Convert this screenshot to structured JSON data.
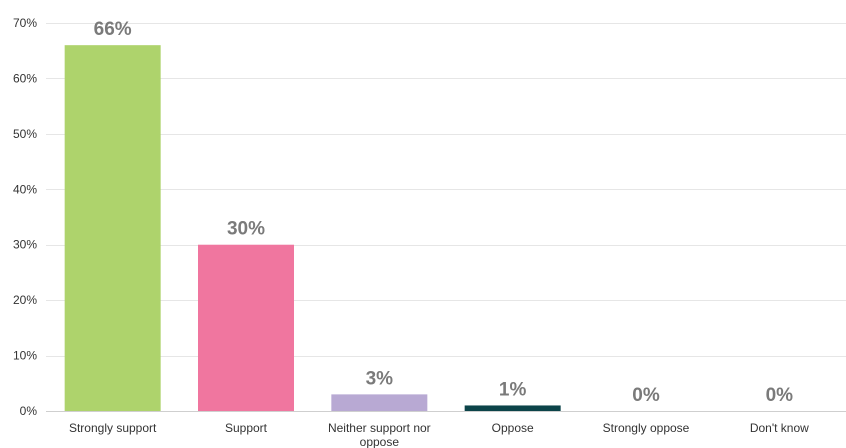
{
  "chart_data": {
    "type": "bar",
    "title": "",
    "xlabel": "",
    "ylabel": "",
    "ylim": [
      0,
      70
    ],
    "yticks": [
      0,
      10,
      20,
      30,
      40,
      50,
      60,
      70
    ],
    "ytick_labels": [
      "0%",
      "10%",
      "20%",
      "30%",
      "40%",
      "50%",
      "60%",
      "70%"
    ],
    "grid": true,
    "legend": "none",
    "categories": [
      [
        "Strongly support"
      ],
      [
        "Support"
      ],
      [
        "Neither support nor",
        "oppose"
      ],
      [
        "Oppose"
      ],
      [
        "Strongly oppose"
      ],
      [
        "Don't know"
      ]
    ],
    "values": [
      66,
      30,
      3,
      1,
      0,
      0
    ],
    "value_labels": [
      "66%",
      "30%",
      "3%",
      "1%",
      "0%",
      "0%"
    ],
    "colors": [
      "#aed36c",
      "#f0769f",
      "#b8a9d3",
      "#0c4449",
      "#cccccc",
      "#cccccc"
    ]
  }
}
